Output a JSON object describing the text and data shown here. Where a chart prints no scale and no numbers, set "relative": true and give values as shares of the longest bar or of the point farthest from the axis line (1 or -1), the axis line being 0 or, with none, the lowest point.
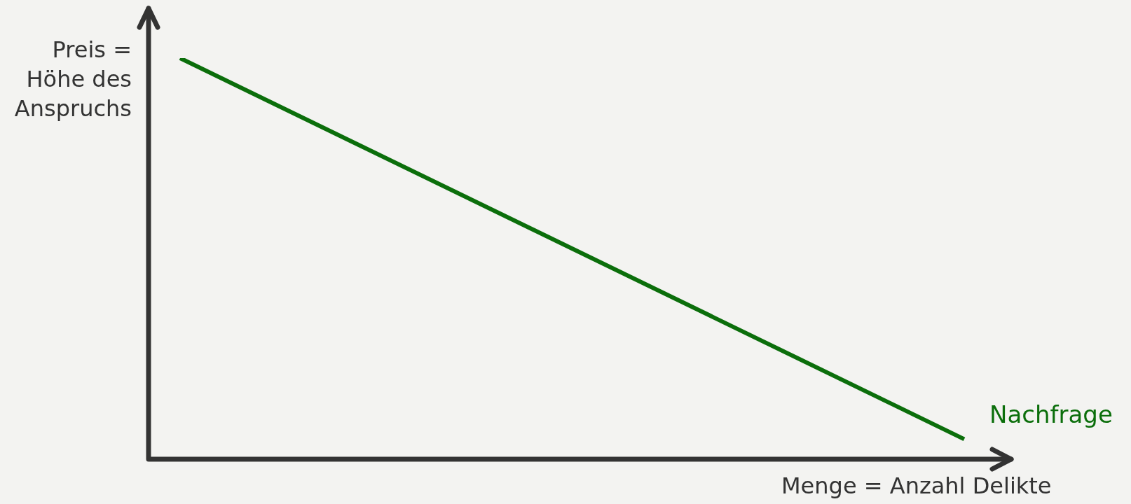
{
  "chart_data": {
    "type": "line",
    "relative": true,
    "categories": [
      null,
      null
    ],
    "xlabel": "Menge = Anzahl Delikte",
    "ylabel": "Preis = Höhe des Anspruchs",
    "marker": "none",
    "line_style": "solid",
    "legend": false,
    "series": [
      {
        "name": "Nachfrage",
        "color": "#0b6e0b",
        "values": [
          1,
          0.05
        ]
      }
    ]
  }
}
